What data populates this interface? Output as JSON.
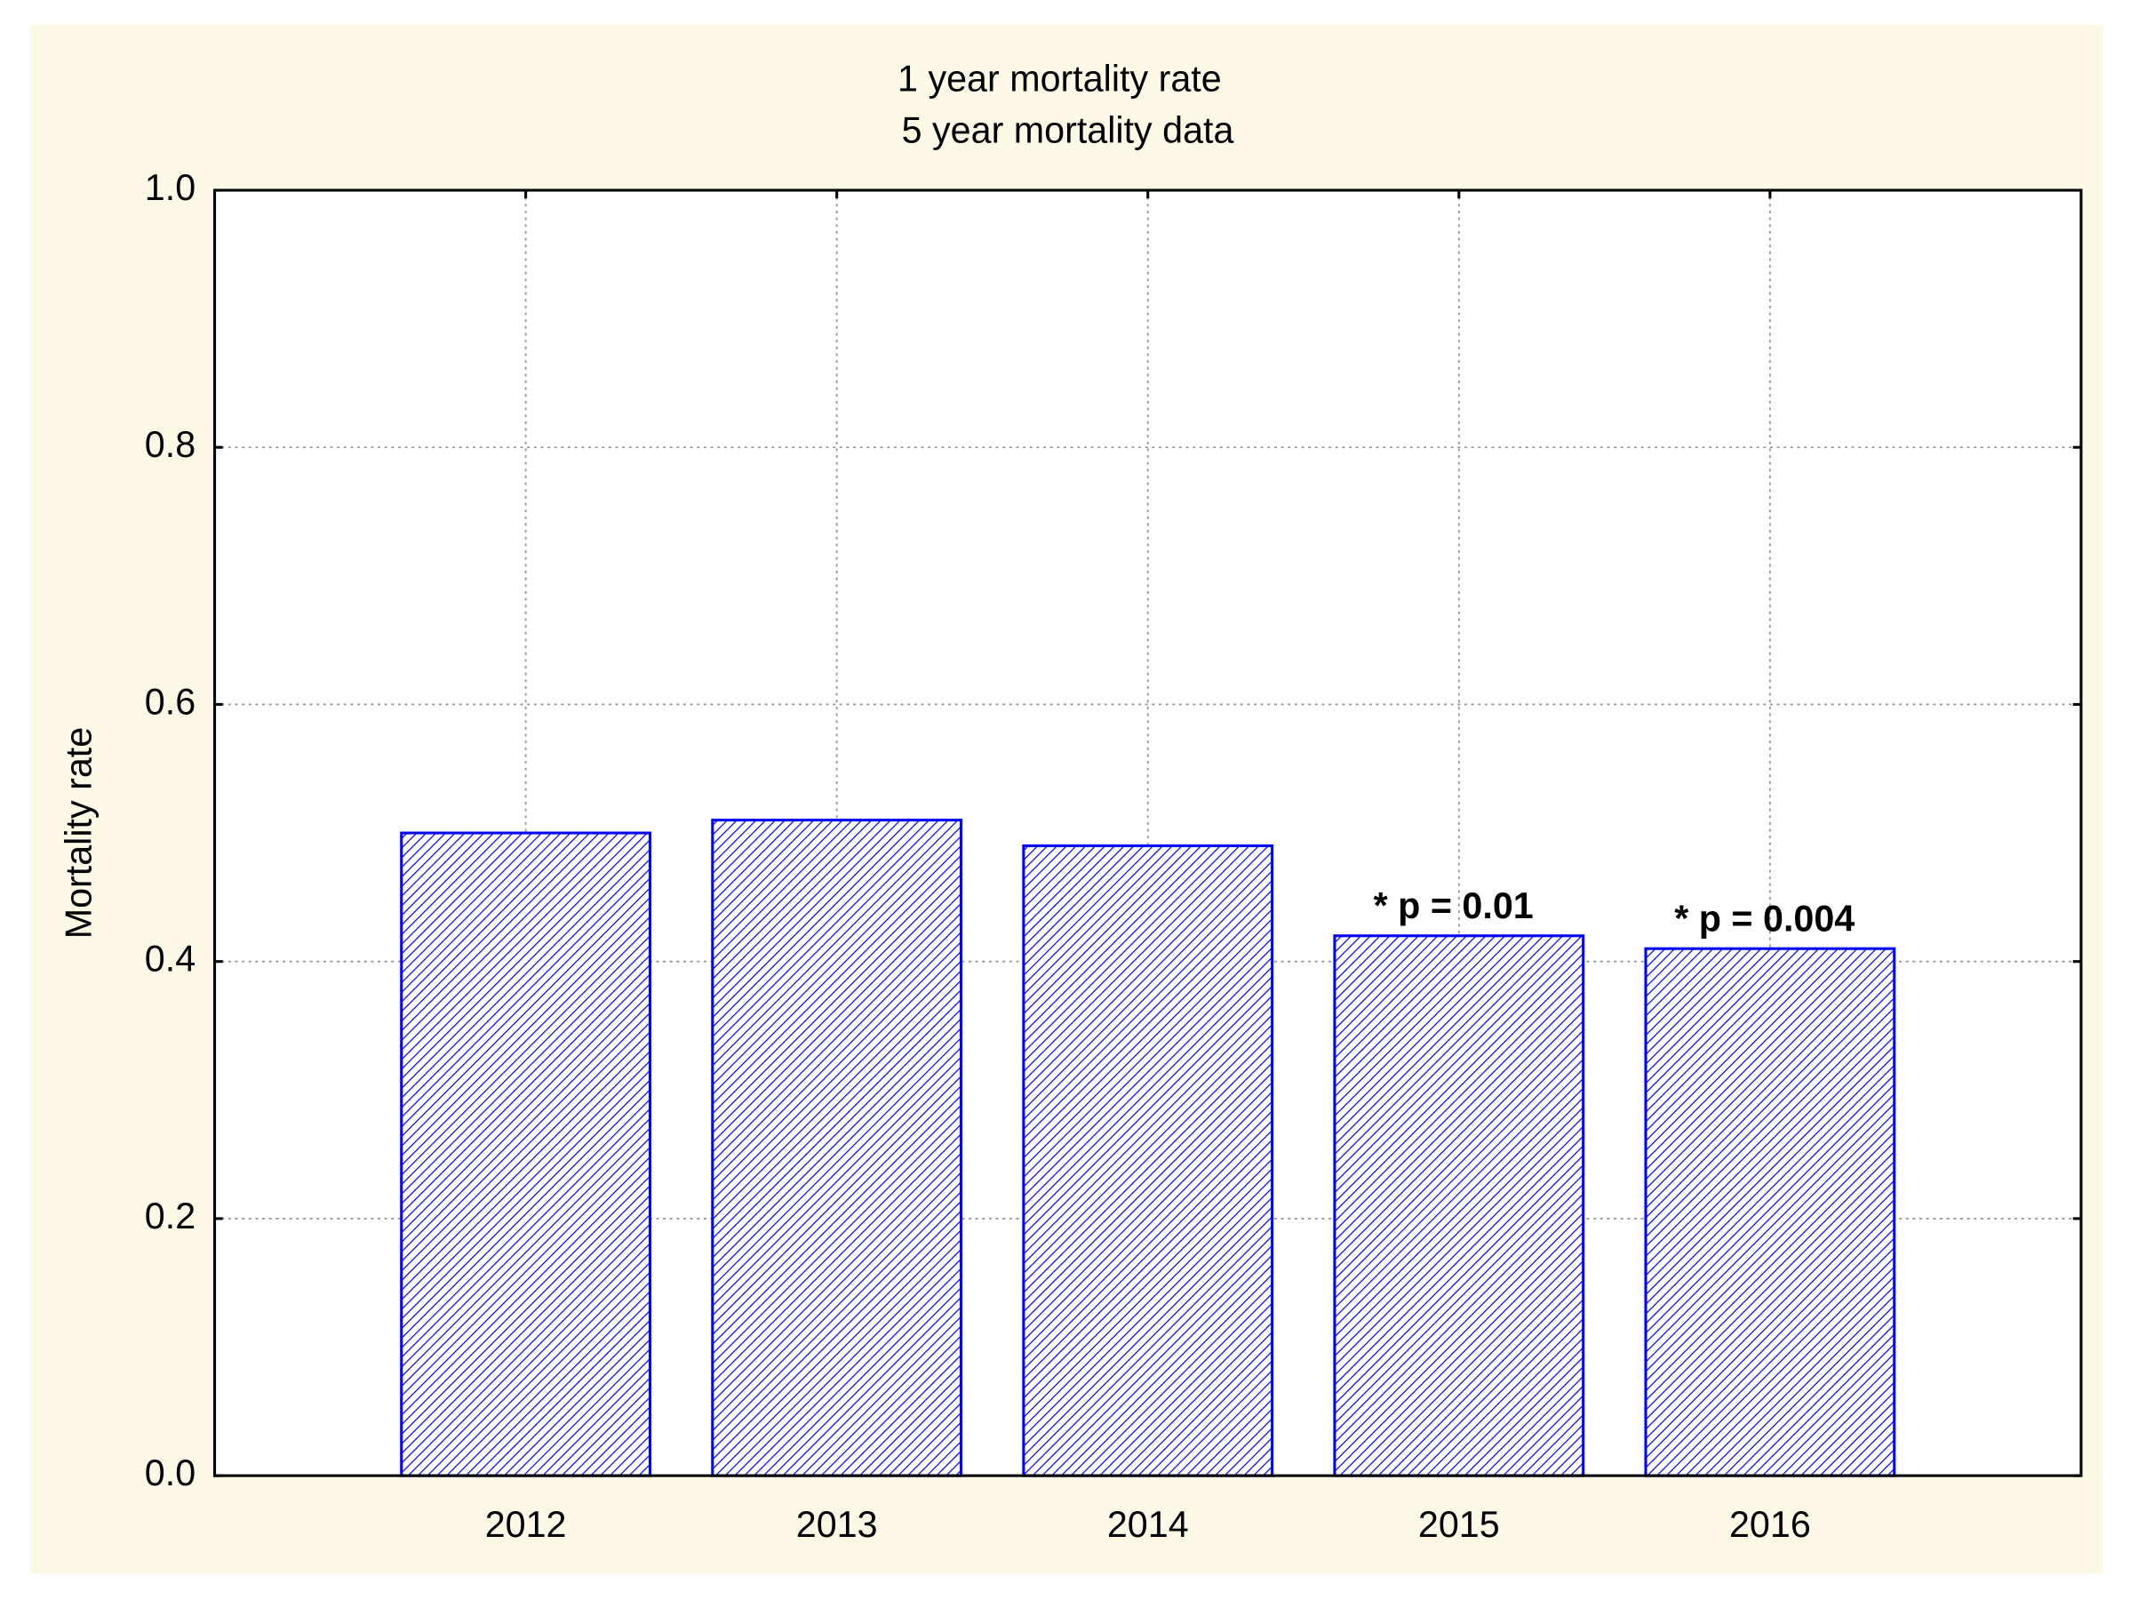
{
  "chart_data": {
    "type": "bar",
    "title": "1 year mortality rate",
    "subtitle": "5 year mortality data",
    "y_label": "Mortality rate",
    "categories": [
      "2012",
      "2013",
      "2014",
      "2015",
      "2016"
    ],
    "values": [
      0.5,
      0.51,
      0.49,
      0.42,
      0.41
    ],
    "annotations": [
      null,
      null,
      null,
      "* p = 0.01",
      "* p = 0.004"
    ],
    "color": "#0000ff",
    "ylim": [
      0,
      1
    ],
    "yticks": [
      {
        "value": 0,
        "label": "0.0"
      },
      0.2,
      0.4,
      0.6,
      0.8,
      {
        "value": 1,
        "label": "1.0"
      }
    ],
    "grid": true
  }
}
